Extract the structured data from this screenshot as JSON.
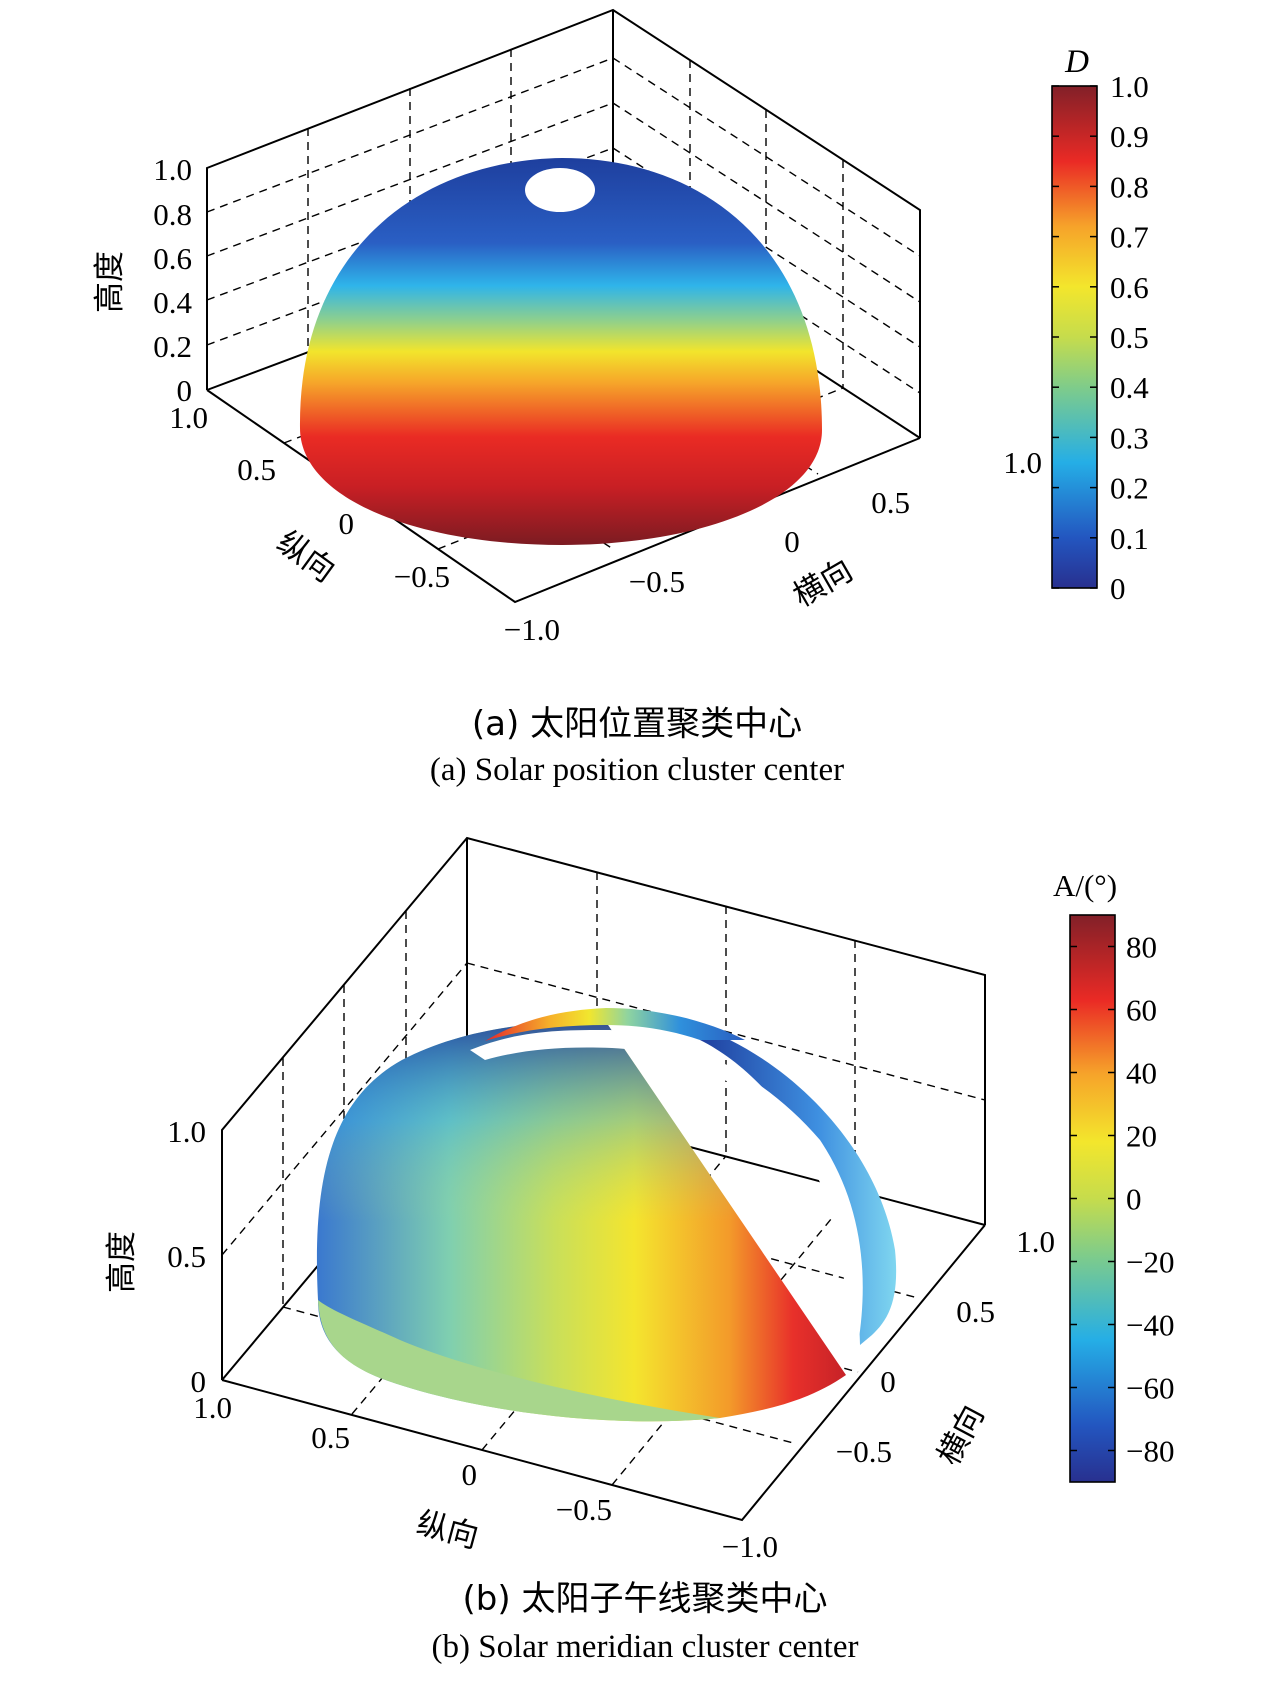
{
  "chart_data": [
    {
      "type": "surface",
      "panel": "a",
      "caption_cn": "(a) 太阳位置聚类中心",
      "caption_en": "(a) Solar position cluster center",
      "zlabel": "高度",
      "xlabel": "纵向",
      "ylabel": "横向",
      "z_ticks": [
        "0",
        "0.2",
        "0.4",
        "0.6",
        "0.8",
        "1.0"
      ],
      "x_ticks": [
        "1.0",
        "0.5",
        "0",
        "−0.5",
        "−1.0"
      ],
      "y_ticks": [
        "−0.5",
        "0",
        "0.5",
        "1.0"
      ],
      "zlim": [
        0,
        1
      ],
      "xlim": [
        -1,
        1
      ],
      "ylim": [
        -1,
        1
      ],
      "colorbar": {
        "label": "D",
        "range": [
          0,
          1
        ],
        "ticks": [
          "0",
          "0.1",
          "0.2",
          "0.3",
          "0.4",
          "0.5",
          "0.6",
          "0.7",
          "0.8",
          "0.9",
          "1.0"
        ]
      },
      "colormap": "jet",
      "surface": "hemisphere, D increases from ~0 at zenith to 1.0 at horizon"
    },
    {
      "type": "surface",
      "panel": "b",
      "caption_cn": "(b) 太阳子午线聚类中心",
      "caption_en": "(b) Solar meridian cluster center",
      "zlabel": "高度",
      "xlabel": "纵向",
      "ylabel": "横向",
      "z_ticks": [
        "0",
        "0.5",
        "1.0"
      ],
      "x_ticks": [
        "1.0",
        "0.5",
        "0",
        "−0.5",
        "−1.0"
      ],
      "y_ticks": [
        "−0.5",
        "0",
        "0.5",
        "1.0"
      ],
      "zlim": [
        0,
        1
      ],
      "xlim": [
        -1,
        1
      ],
      "ylim": [
        -1,
        1
      ],
      "colorbar": {
        "label": "A/(°)",
        "range": [
          -90,
          90
        ],
        "ticks": [
          "−80",
          "−60",
          "−40",
          "−20",
          "0",
          "20",
          "40",
          "60",
          "80"
        ]
      },
      "colormap": "jet",
      "surface": "hemisphere split by a gap, A varies with azimuth from −90 to 90"
    }
  ]
}
